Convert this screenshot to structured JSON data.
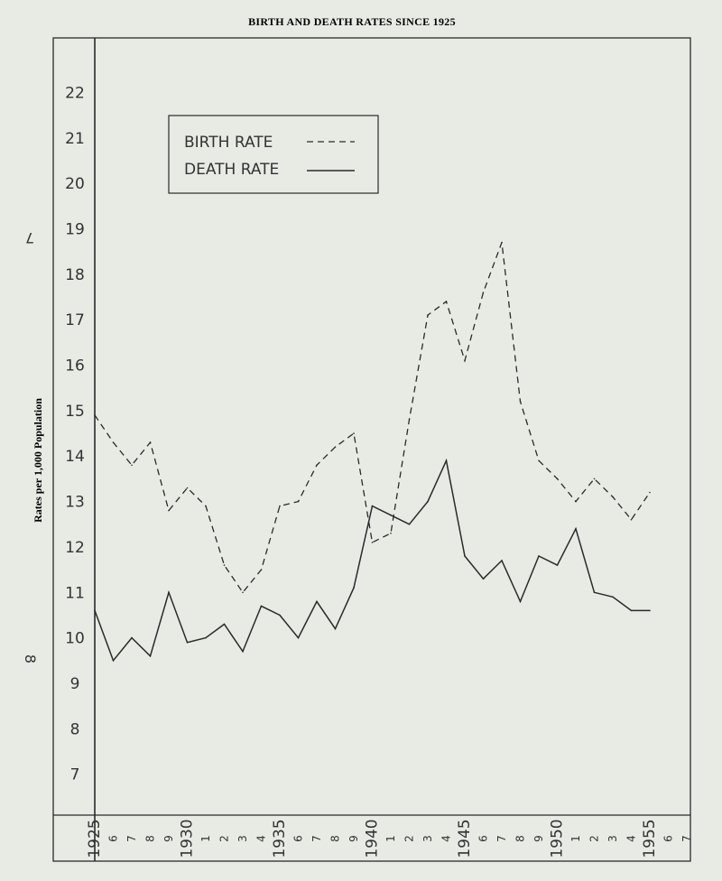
{
  "colors": {
    "paper": "#e8ebe4",
    "ink": "#2a2a2a"
  },
  "page_marks": {
    "top_left": "7",
    "bottom_left": "8"
  },
  "chart_data": {
    "type": "line",
    "title": "BIRTH AND DEATH RATES SINCE 1925",
    "ylabel": "Rates per 1,000 Population",
    "xlabel": "",
    "ylim": [
      6.1,
      23.2
    ],
    "xlim": [
      1925,
      1957
    ],
    "y_ticks": [
      "7",
      "8",
      "9",
      "10",
      "11",
      "12",
      "13",
      "14",
      "15",
      "16",
      "17",
      "18",
      "19",
      "20",
      "21",
      "22"
    ],
    "x_ticks": [
      {
        "year": 1925,
        "label": "1925",
        "major": true
      },
      {
        "year": 1926,
        "label": "6",
        "major": false
      },
      {
        "year": 1927,
        "label": "7",
        "major": false
      },
      {
        "year": 1928,
        "label": "8",
        "major": false
      },
      {
        "year": 1929,
        "label": "9",
        "major": false
      },
      {
        "year": 1930,
        "label": "1930",
        "major": true
      },
      {
        "year": 1931,
        "label": "1",
        "major": false
      },
      {
        "year": 1932,
        "label": "2",
        "major": false
      },
      {
        "year": 1933,
        "label": "3",
        "major": false
      },
      {
        "year": 1934,
        "label": "4",
        "major": false
      },
      {
        "year": 1935,
        "label": "1935",
        "major": true
      },
      {
        "year": 1936,
        "label": "6",
        "major": false
      },
      {
        "year": 1937,
        "label": "7",
        "major": false
      },
      {
        "year": 1938,
        "label": "8",
        "major": false
      },
      {
        "year": 1939,
        "label": "9",
        "major": false
      },
      {
        "year": 1940,
        "label": "1940",
        "major": true
      },
      {
        "year": 1941,
        "label": "1",
        "major": false
      },
      {
        "year": 1942,
        "label": "2",
        "major": false
      },
      {
        "year": 1943,
        "label": "3",
        "major": false
      },
      {
        "year": 1944,
        "label": "4",
        "major": false
      },
      {
        "year": 1945,
        "label": "1945",
        "major": true
      },
      {
        "year": 1946,
        "label": "6",
        "major": false
      },
      {
        "year": 1947,
        "label": "7",
        "major": false
      },
      {
        "year": 1948,
        "label": "8",
        "major": false
      },
      {
        "year": 1949,
        "label": "9",
        "major": false
      },
      {
        "year": 1950,
        "label": "1950",
        "major": true
      },
      {
        "year": 1951,
        "label": "1",
        "major": false
      },
      {
        "year": 1952,
        "label": "2",
        "major": false
      },
      {
        "year": 1953,
        "label": "3",
        "major": false
      },
      {
        "year": 1954,
        "label": "4",
        "major": false
      },
      {
        "year": 1955,
        "label": "1955",
        "major": true
      },
      {
        "year": 1956,
        "label": "6",
        "major": false
      },
      {
        "year": 1957,
        "label": "7",
        "major": false
      }
    ],
    "grid": false,
    "legend_position": "top-left",
    "series": [
      {
        "name": "BIRTH RATE",
        "style": "dashed",
        "x": [
          1925,
          1926,
          1927,
          1928,
          1929,
          1930,
          1931,
          1932,
          1933,
          1934,
          1935,
          1936,
          1937,
          1938,
          1939,
          1940,
          1941,
          1942,
          1943,
          1944,
          1945,
          1946,
          1947,
          1948,
          1949,
          1950,
          1951,
          1952,
          1953,
          1954,
          1955
        ],
        "y": [
          14.9,
          14.3,
          13.8,
          14.3,
          12.8,
          13.3,
          12.9,
          11.6,
          11.0,
          11.5,
          12.9,
          13.0,
          13.8,
          14.2,
          14.5,
          12.1,
          12.3,
          14.8,
          17.1,
          17.4,
          16.1,
          17.6,
          18.7,
          15.2,
          13.9,
          13.5,
          13.0,
          13.5,
          13.1,
          12.6,
          13.2
        ]
      },
      {
        "name": "DEATH RATE",
        "style": "solid",
        "x": [
          1925,
          1926,
          1927,
          1928,
          1929,
          1930,
          1931,
          1932,
          1933,
          1934,
          1935,
          1936,
          1937,
          1938,
          1939,
          1940,
          1941,
          1942,
          1943,
          1944,
          1945,
          1946,
          1947,
          1948,
          1949,
          1950,
          1951,
          1952,
          1953,
          1954,
          1955
        ],
        "y": [
          10.6,
          9.5,
          10.0,
          9.6,
          11.0,
          9.9,
          10.0,
          10.3,
          9.7,
          10.7,
          10.5,
          10.0,
          10.8,
          10.2,
          11.1,
          12.9,
          12.7,
          12.5,
          13.0,
          13.9,
          11.8,
          11.3,
          11.7,
          10.8,
          11.8,
          11.6,
          12.4,
          11.0,
          10.9,
          10.6,
          10.6
        ]
      }
    ]
  }
}
